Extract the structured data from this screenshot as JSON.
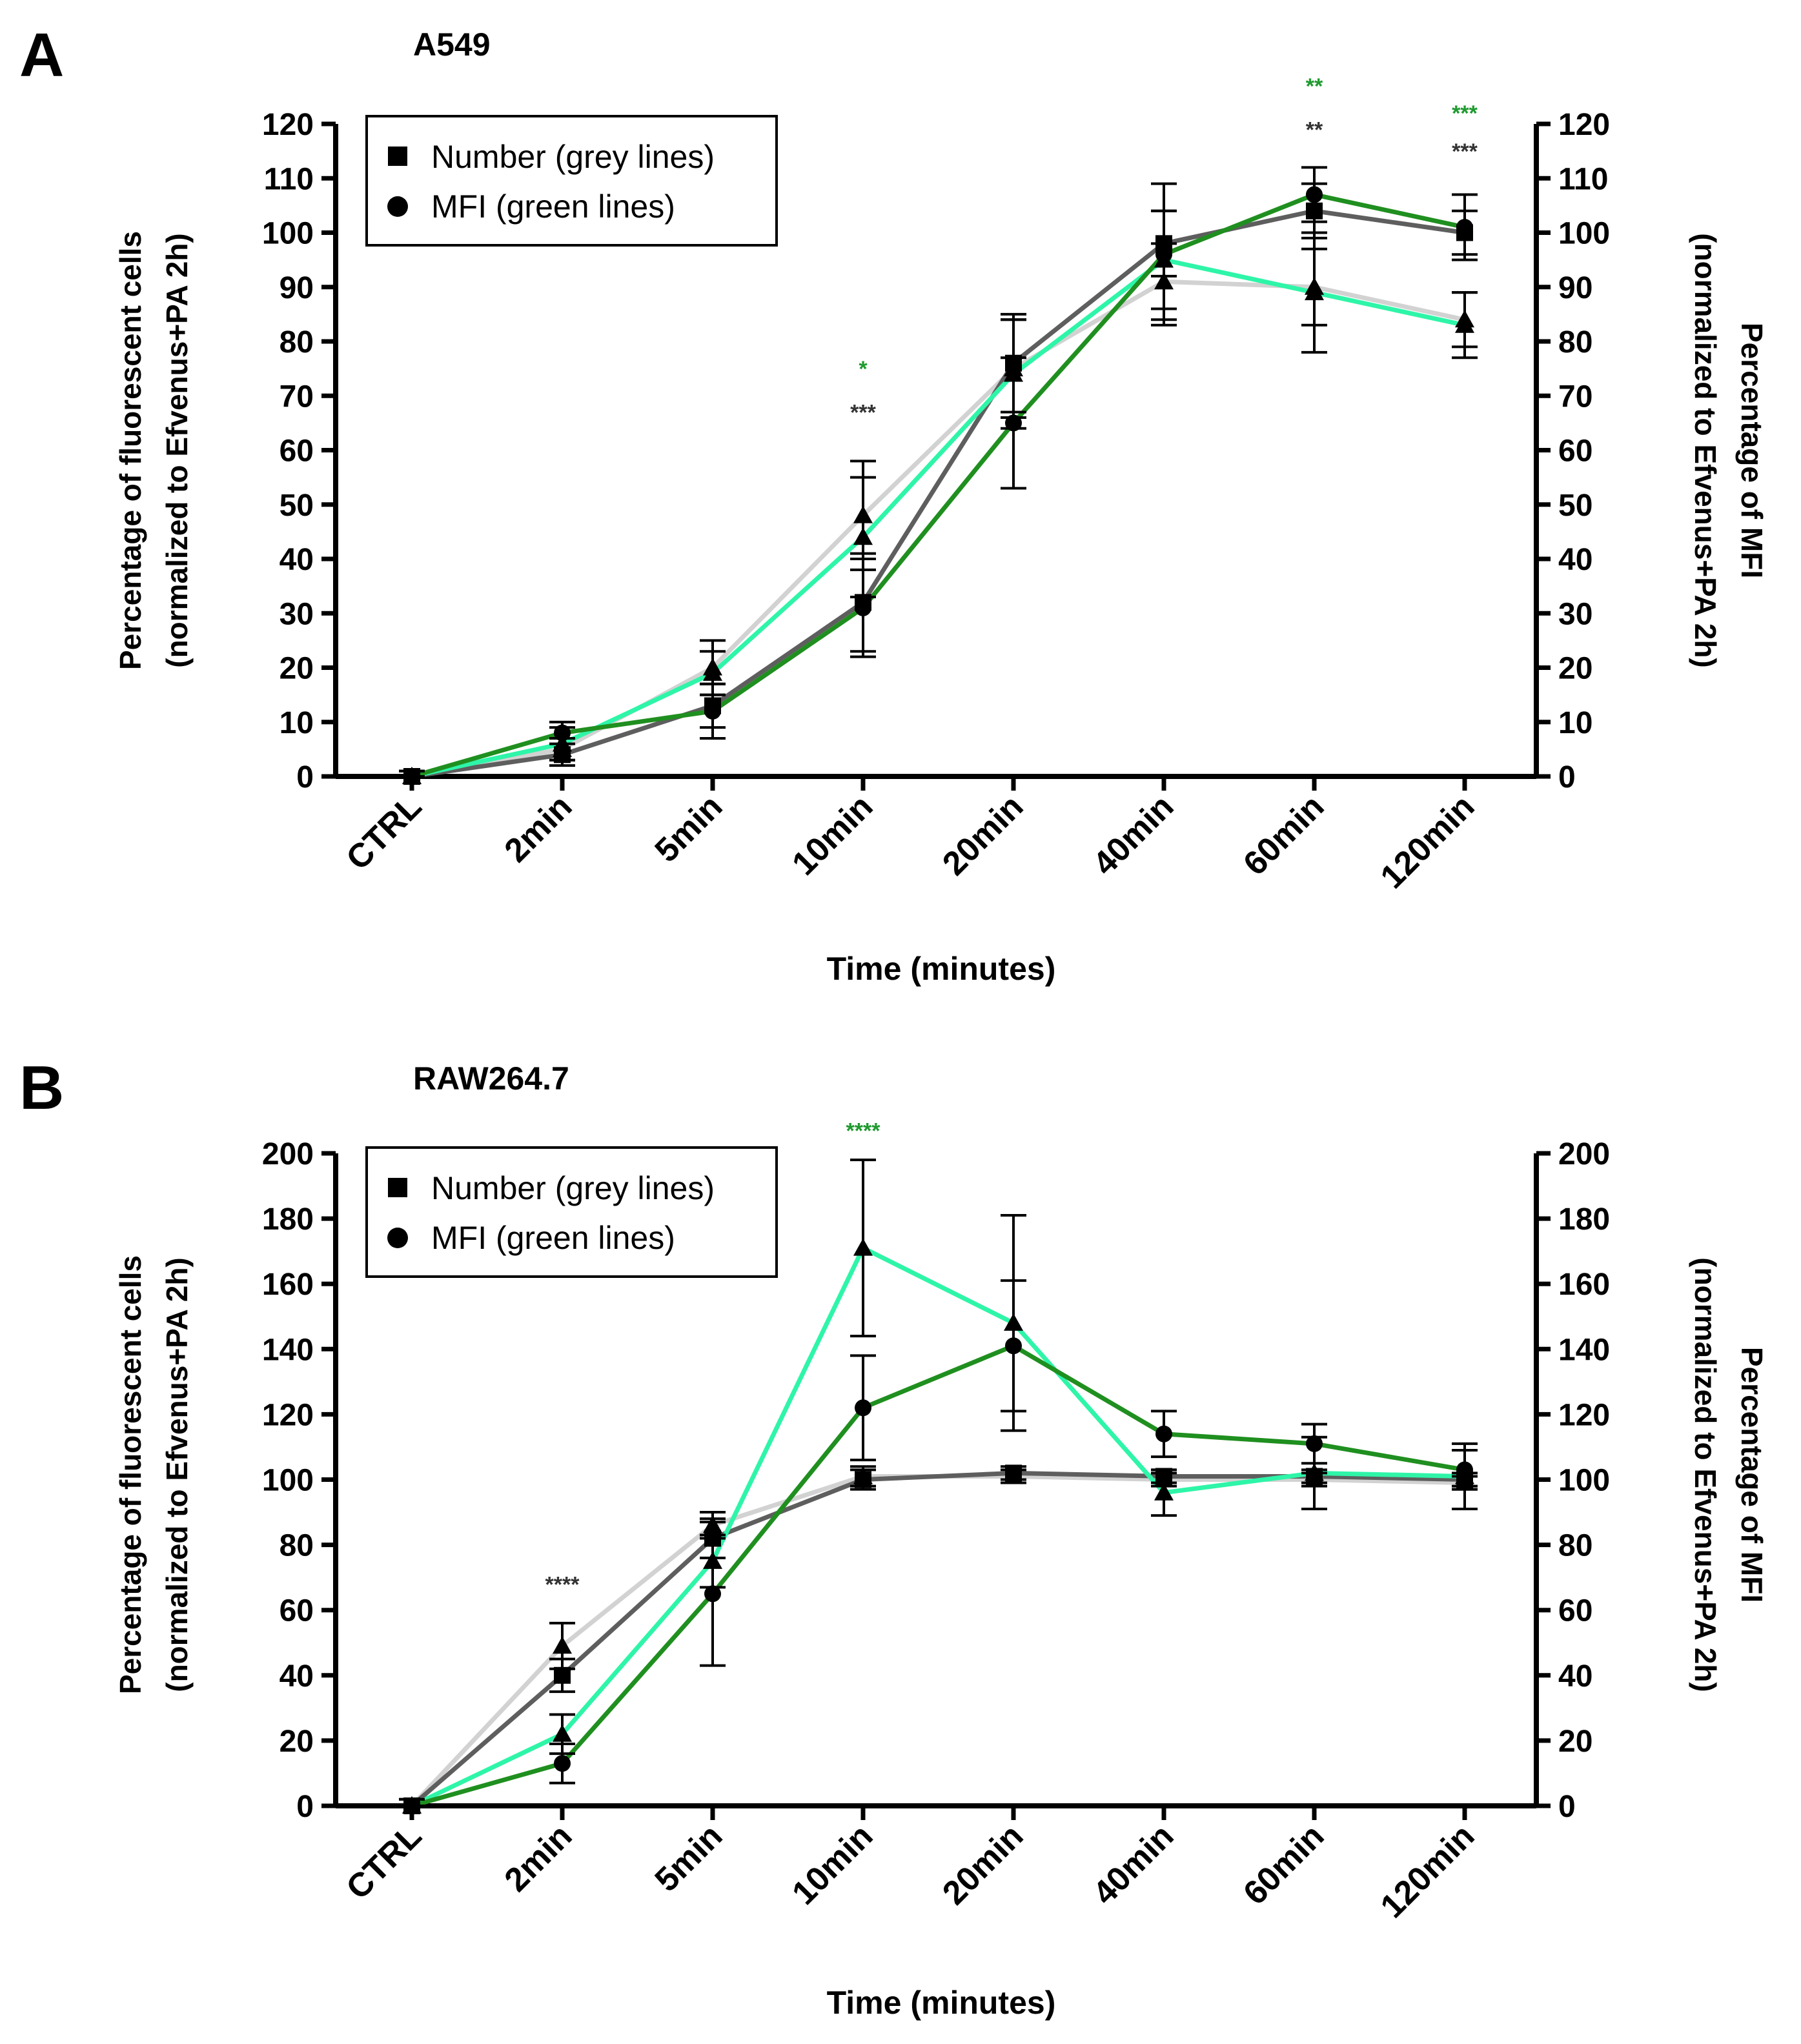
{
  "colors": {
    "num_grey_light": "#d2d2d2",
    "num_grey_dark": "#5e5e5e",
    "mfi_green_light": "#2ef5a8",
    "mfi_green_dark": "#1f8f1f",
    "sig_grey": "#333333",
    "sig_green": "#1f9a2f"
  },
  "chart_data": [
    {
      "panel": "A",
      "type": "line",
      "title": "A549",
      "xlabel": "Time (minutes)",
      "ylabel_left": [
        "Percentage of fluorescent cells",
        "(normalized to Efvenus+PA 2h)"
      ],
      "ylabel_right": [
        "Percentage of MFI",
        "(normalized to Efvenus+PA 2h)"
      ],
      "categories": [
        "CTRL",
        "2min",
        "5min",
        "10min",
        "20min",
        "40min",
        "60min",
        "120min"
      ],
      "ylim": [
        0,
        120
      ],
      "yticks": [
        0,
        10,
        20,
        30,
        40,
        50,
        60,
        70,
        80,
        90,
        100,
        110,
        120
      ],
      "legend": {
        "position": "top-left",
        "entries": [
          {
            "marker": "square",
            "label": "Number (grey lines)"
          },
          {
            "marker": "circle",
            "label": "MFI (green lines)"
          }
        ]
      },
      "series": [
        {
          "name": "Number (light grey)",
          "color": "#d2d2d2",
          "marker": "triangle",
          "values": [
            0,
            5,
            20,
            48,
            75,
            91,
            90,
            84
          ],
          "errors": [
            1,
            2,
            5,
            10,
            9,
            7,
            7,
            5
          ]
        },
        {
          "name": "Number (dark grey)",
          "color": "#5e5e5e",
          "marker": "square",
          "values": [
            0,
            4,
            13,
            32,
            76,
            98,
            104,
            100
          ],
          "errors": [
            1,
            2,
            4,
            9,
            9,
            6,
            5,
            4
          ]
        },
        {
          "name": "MFI (light green)",
          "color": "#2ef5a8",
          "marker": "triangle",
          "values": [
            0,
            6,
            19,
            44,
            74,
            95,
            89,
            83
          ],
          "errors": [
            1,
            3,
            4,
            11,
            10,
            9,
            11,
            6
          ]
        },
        {
          "name": "MFI (dark green)",
          "color": "#1f8f1f",
          "marker": "circle",
          "values": [
            0,
            8,
            12,
            31,
            65,
            96,
            107,
            101
          ],
          "errors": [
            1,
            2,
            5,
            9,
            12,
            13,
            5,
            6
          ]
        }
      ],
      "annotations": [
        {
          "category": "10min",
          "text": "*",
          "color": "#1f9a2f",
          "y": 75
        },
        {
          "category": "10min",
          "text": "***",
          "color": "#333333",
          "y": 67
        },
        {
          "category": "60min",
          "text": "**",
          "color": "#1f9a2f",
          "y": 127
        },
        {
          "category": "60min",
          "text": "**",
          "color": "#333333",
          "y": 119
        },
        {
          "category": "120min",
          "text": "***",
          "color": "#1f9a2f",
          "y": 122
        },
        {
          "category": "120min",
          "text": "***",
          "color": "#333333",
          "y": 115
        }
      ]
    },
    {
      "panel": "B",
      "type": "line",
      "title": "RAW264.7",
      "xlabel": "Time (minutes)",
      "ylabel_left": [
        "Percentage of fluorescent cells",
        "(normalized to Efvenus+PA 2h)"
      ],
      "ylabel_right": [
        "Percentage of MFI",
        "(normalized to Efvenus+PA 2h)"
      ],
      "categories": [
        "CTRL",
        "2min",
        "5min",
        "10min",
        "20min",
        "40min",
        "60min",
        "120min"
      ],
      "ylim": [
        0,
        200
      ],
      "yticks": [
        0,
        20,
        40,
        60,
        80,
        100,
        120,
        140,
        160,
        180,
        200
      ],
      "legend": {
        "position": "top-left",
        "entries": [
          {
            "marker": "square",
            "label": "Number (grey lines)"
          },
          {
            "marker": "circle",
            "label": "MFI (green lines)"
          }
        ]
      },
      "series": [
        {
          "name": "Number (light grey)",
          "color": "#d2d2d2",
          "marker": "triangle",
          "values": [
            0,
            49,
            86,
            101,
            101,
            100,
            100,
            99
          ],
          "errors": [
            2,
            7,
            4,
            3,
            2,
            2,
            2,
            2
          ]
        },
        {
          "name": "Number (dark grey)",
          "color": "#5e5e5e",
          "marker": "square",
          "values": [
            0,
            40,
            82,
            100,
            102,
            101,
            101,
            100
          ],
          "errors": [
            2,
            5,
            6,
            3,
            2,
            2,
            2,
            2
          ]
        },
        {
          "name": "MFI (light green)",
          "color": "#2ef5a8",
          "marker": "triangle",
          "values": [
            0,
            22,
            75,
            171,
            148,
            96,
            102,
            101
          ],
          "errors": [
            2,
            6,
            8,
            27,
            33,
            7,
            11,
            10
          ]
        },
        {
          "name": "MFI (dark green)",
          "color": "#1f8f1f",
          "marker": "circle",
          "values": [
            0,
            13,
            65,
            122,
            141,
            114,
            111,
            103
          ],
          "errors": [
            2,
            6,
            22,
            16,
            20,
            7,
            6,
            6
          ]
        }
      ],
      "annotations": [
        {
          "category": "2min",
          "text": "****",
          "color": "#333333",
          "y": 68
        },
        {
          "category": "10min",
          "text": "****",
          "color": "#1f9a2f",
          "y": 207
        }
      ]
    }
  ]
}
